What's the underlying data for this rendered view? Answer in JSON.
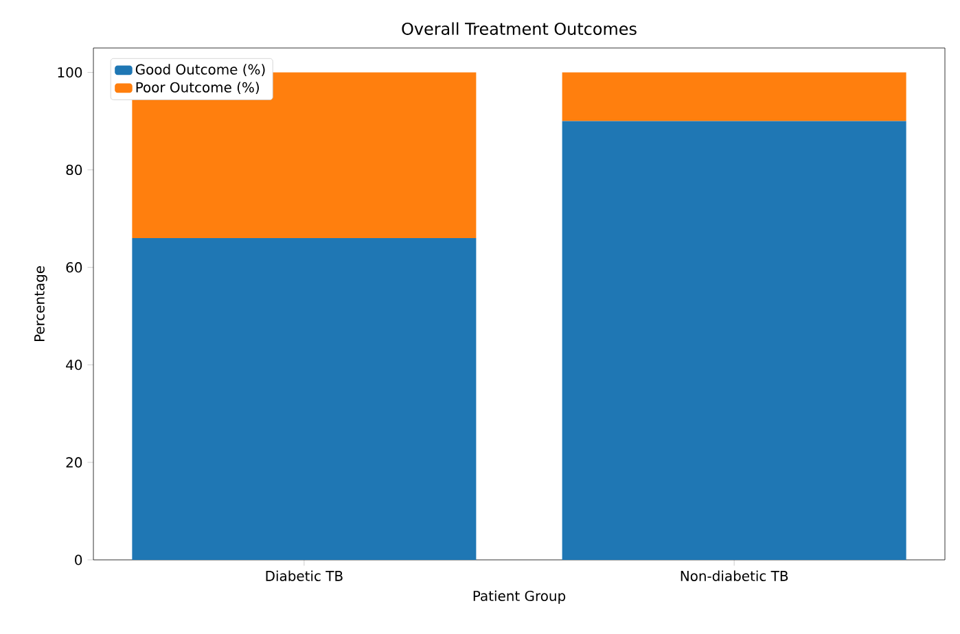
{
  "chart_data": {
    "type": "bar",
    "title": "Overall Treatment Outcomes",
    "xlabel": "Patient Group",
    "ylabel": "Percentage",
    "categories": [
      "Diabetic TB",
      "Non-diabetic TB"
    ],
    "stacked": true,
    "series": [
      {
        "name": "Good Outcome (%)",
        "color": "#1f77b4",
        "values": [
          66,
          90
        ]
      },
      {
        "name": "Poor Outcome (%)",
        "color": "#ff7f0e",
        "values": [
          34,
          10
        ]
      }
    ],
    "ylim": [
      0,
      105
    ],
    "yticks": [
      0,
      20,
      40,
      60,
      80,
      100
    ],
    "legend": "top left"
  }
}
